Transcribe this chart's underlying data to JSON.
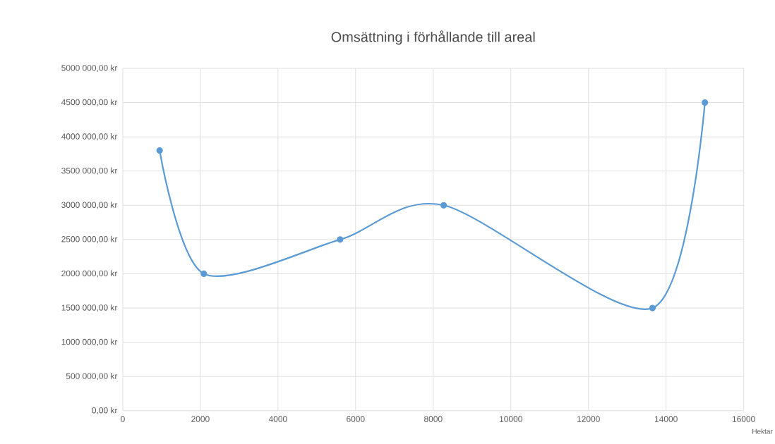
{
  "chart_data": {
    "type": "line",
    "title": "Omsättning i förhållande till areal",
    "xlabel": "Hektar",
    "x": [
      950,
      2090,
      5600,
      8270,
      13650,
      15000
    ],
    "series": [
      {
        "color": "#5b9bd5",
        "values": [
          3800000,
          2000000,
          2500000,
          3000000,
          1500000,
          4500000
        ]
      }
    ],
    "xlim": [
      0,
      16000
    ],
    "xticks": [
      0,
      2000,
      4000,
      6000,
      8000,
      10000,
      12000,
      14000,
      16000
    ],
    "ylim": [
      0,
      5000000
    ],
    "yticks": [
      {
        "value": 0,
        "label": "0,00 kr"
      },
      {
        "value": 500000,
        "label": "500 000,00 kr"
      },
      {
        "value": 1000000,
        "label": "1000 000,00 kr"
      },
      {
        "value": 1500000,
        "label": "1500 000,00 kr"
      },
      {
        "value": 2000000,
        "label": "2000 000,00 kr"
      },
      {
        "value": 2500000,
        "label": "2500 000,00 kr"
      },
      {
        "value": 3000000,
        "label": "3000 000,00 kr"
      },
      {
        "value": 3500000,
        "label": "3500 000,00 kr"
      },
      {
        "value": 4000000,
        "label": "4000 000,00 kr"
      },
      {
        "value": 4500000,
        "label": "4500 000,00 kr"
      },
      {
        "value": 5000000,
        "label": "5000 000,00 kr"
      }
    ],
    "grid": true,
    "marker": "circle",
    "line_style": "solid"
  }
}
